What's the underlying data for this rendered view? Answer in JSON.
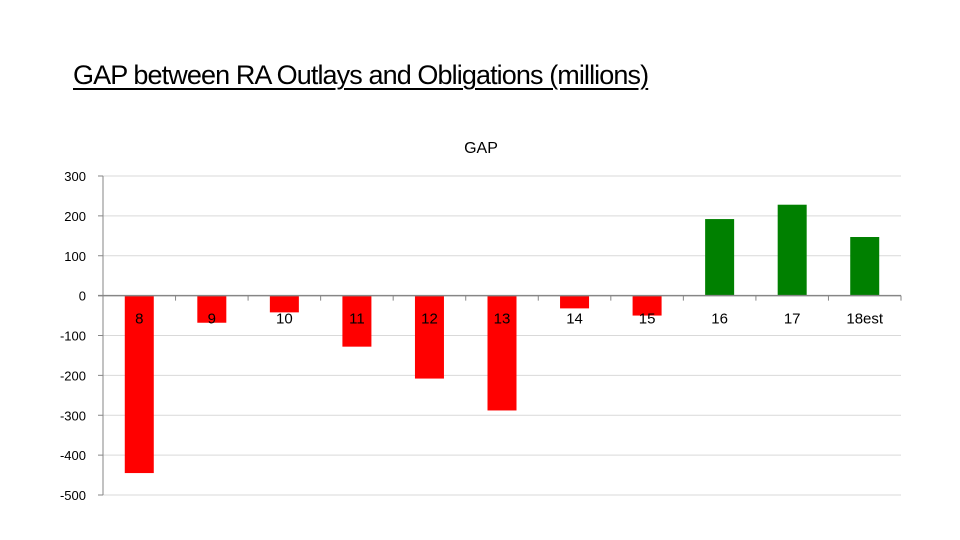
{
  "slide": {
    "title": "GAP between RA Outlays and Obligations (millions)"
  },
  "chart_data": {
    "type": "bar",
    "title": "GAP",
    "xlabel": "",
    "ylabel": "",
    "categories": [
      "8",
      "9",
      "10",
      "11",
      "12",
      "13",
      "14",
      "15",
      "16",
      "17",
      "18est"
    ],
    "series": [
      {
        "values": [
          -445,
          -68,
          -42,
          -128,
          -208,
          -288,
          -32,
          -50,
          192,
          228,
          147
        ]
      }
    ],
    "ylim": [
      -500,
      300
    ],
    "yticks": [
      300,
      200,
      100,
      0,
      -100,
      -200,
      -300,
      -400,
      -500
    ],
    "grid": true,
    "legend": "none",
    "colors": {
      "negative": "#ff0000",
      "positive": "#008000",
      "grid": "#d9d9d9",
      "axis": "#868686"
    }
  }
}
